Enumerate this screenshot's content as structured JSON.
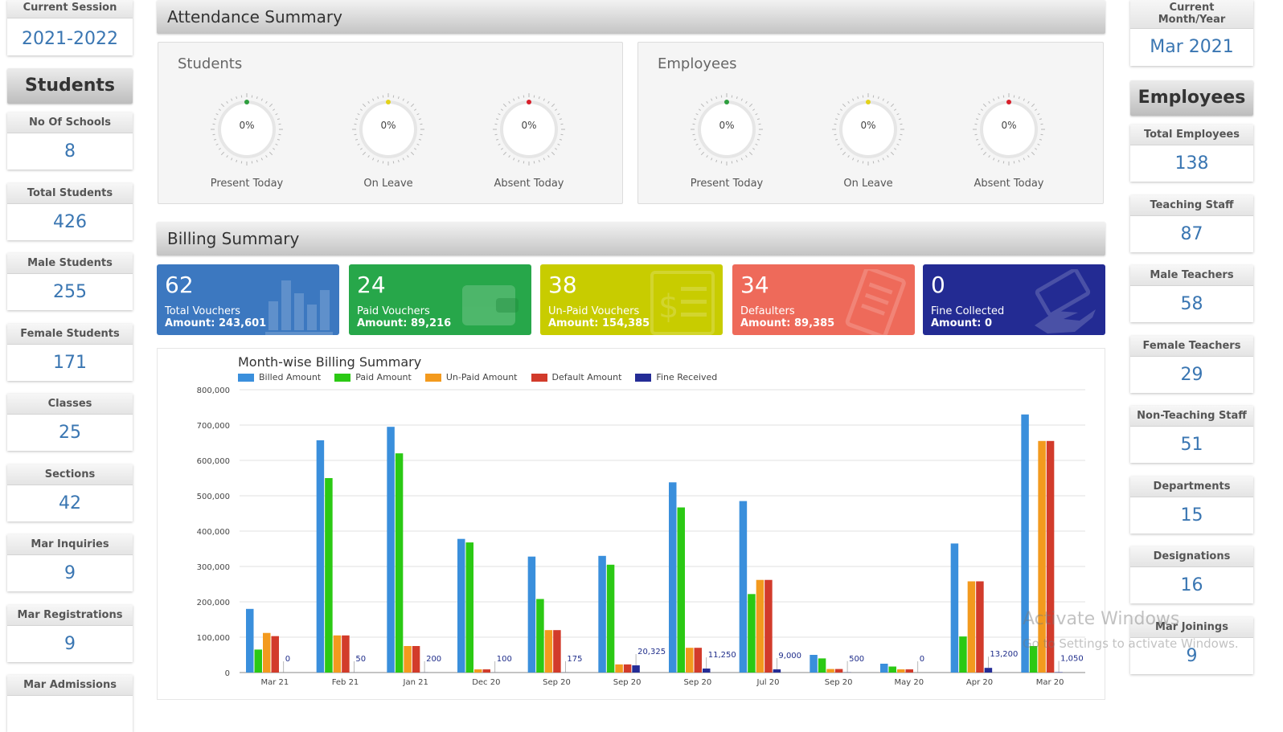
{
  "left": {
    "session": {
      "label": "Current Session",
      "value": "2021-2022"
    },
    "section_title": "Students",
    "stats": [
      {
        "label": "No Of Schools",
        "value": "8"
      },
      {
        "label": "Total Students",
        "value": "426"
      },
      {
        "label": "Male Students",
        "value": "255"
      },
      {
        "label": "Female Students",
        "value": "171"
      },
      {
        "label": "Classes",
        "value": "25"
      },
      {
        "label": "Sections",
        "value": "42"
      },
      {
        "label": "Mar Inquiries",
        "value": "9"
      },
      {
        "label": "Mar Registrations",
        "value": "9"
      },
      {
        "label": "Mar Admissions",
        "value": ""
      }
    ]
  },
  "right": {
    "month": {
      "label": "Current Month/Year",
      "value": "Mar 2021"
    },
    "section_title": "Employees",
    "stats": [
      {
        "label": "Total Employees",
        "value": "138"
      },
      {
        "label": "Teaching Staff",
        "value": "87"
      },
      {
        "label": "Male Teachers",
        "value": "58"
      },
      {
        "label": "Female Teachers",
        "value": "29"
      },
      {
        "label": "Non-Teaching Staff",
        "value": "51"
      },
      {
        "label": "Departments",
        "value": "15"
      },
      {
        "label": "Designations",
        "value": "16"
      },
      {
        "label": "Mar Joinings",
        "value": "9"
      }
    ]
  },
  "attendance": {
    "title": "Attendance Summary",
    "students": {
      "title": "Students",
      "gauges": [
        {
          "label": "Present Today",
          "value": "0%",
          "color": "#2e9e3e"
        },
        {
          "label": "On Leave",
          "value": "0%",
          "color": "#e3d21a"
        },
        {
          "label": "Absent Today",
          "value": "0%",
          "color": "#d81f2a"
        }
      ]
    },
    "employees": {
      "title": "Employees",
      "gauges": [
        {
          "label": "Present Today",
          "value": "0%",
          "color": "#2e9e3e"
        },
        {
          "label": "On Leave",
          "value": "0%",
          "color": "#e3d21a"
        },
        {
          "label": "Absent Today",
          "value": "0%",
          "color": "#d81f2a"
        }
      ]
    }
  },
  "billing": {
    "title": "Billing Summary",
    "cards": [
      {
        "count": "62",
        "label": "Total Vouchers",
        "amount_label": "Amount:",
        "amount": "243,601",
        "color": "#3c78c0",
        "icon": "bar-chart-icon"
      },
      {
        "count": "24",
        "label": "Paid Vouchers",
        "amount_label": "Amount:",
        "amount": "89,216",
        "color": "#27a74a",
        "icon": "wallet-icon"
      },
      {
        "count": "38",
        "label": "Un-Paid Vouchers",
        "amount_label": "Amount:",
        "amount": "154,385",
        "color": "#c8cc00",
        "icon": "invoice-icon"
      },
      {
        "count": "34",
        "label": "Defaulters",
        "amount_label": "Amount:",
        "amount": "89,385",
        "color": "#ee6a5a",
        "icon": "receipt-icon"
      },
      {
        "count": "0",
        "label": "Fine Collected",
        "amount_label": "Amount:",
        "amount": "0",
        "color": "#232b93",
        "icon": "hand-money-icon"
      }
    ]
  },
  "watermark": {
    "line1": "Activate Windows",
    "line2": "Go to Settings to activate Windows."
  },
  "chart_data": {
    "type": "bar",
    "title": "Month-wise Billing Summary",
    "categories": [
      "Mar 21",
      "Feb 21",
      "Jan 21",
      "Dec 20",
      "Sep 20",
      "Sep 20",
      "Sep 20",
      "Jul 20",
      "Sep 20",
      "May 20",
      "Apr 20",
      "Mar 20"
    ],
    "ylim": [
      0,
      800000
    ],
    "yticks": [
      0,
      100000,
      200000,
      300000,
      400000,
      500000,
      600000,
      700000,
      800000
    ],
    "ytick_labels": [
      "0",
      "100,000",
      "200,000",
      "300,000",
      "400,000",
      "500,000",
      "600,000",
      "700,000",
      "800,000"
    ],
    "grid": true,
    "legend_position": "top-left",
    "series": [
      {
        "name": "Billed Amount",
        "color": "#3a8fdc",
        "values": [
          180000,
          657000,
          695000,
          378000,
          328000,
          330000,
          538000,
          485000,
          50000,
          25000,
          365000,
          730000
        ]
      },
      {
        "name": "Paid Amount",
        "color": "#2bc914",
        "values": [
          65000,
          550000,
          620000,
          368000,
          208000,
          305000,
          467000,
          222000,
          40000,
          17000,
          102000,
          75000
        ]
      },
      {
        "name": "Un-Paid Amount",
        "color": "#f39a1e",
        "values": [
          112000,
          105000,
          75000,
          9000,
          120000,
          23000,
          70000,
          262000,
          10000,
          9000,
          258000,
          655000
        ]
      },
      {
        "name": "Default Amount",
        "color": "#d23b2b",
        "values": [
          103000,
          105000,
          75000,
          9000,
          120000,
          23000,
          70000,
          262000,
          10000,
          9000,
          258000,
          655000
        ]
      },
      {
        "name": "Fine Received",
        "color": "#242c96",
        "values": [
          0,
          50,
          200,
          100,
          175,
          20325,
          11250,
          9000,
          500,
          0,
          13200,
          1050
        ]
      }
    ],
    "data_labels": [
      "0",
      "50",
      "200",
      "100",
      "175",
      "20,325",
      "11,250",
      "9,000",
      "500",
      "0",
      "13,200",
      "1,050"
    ]
  }
}
